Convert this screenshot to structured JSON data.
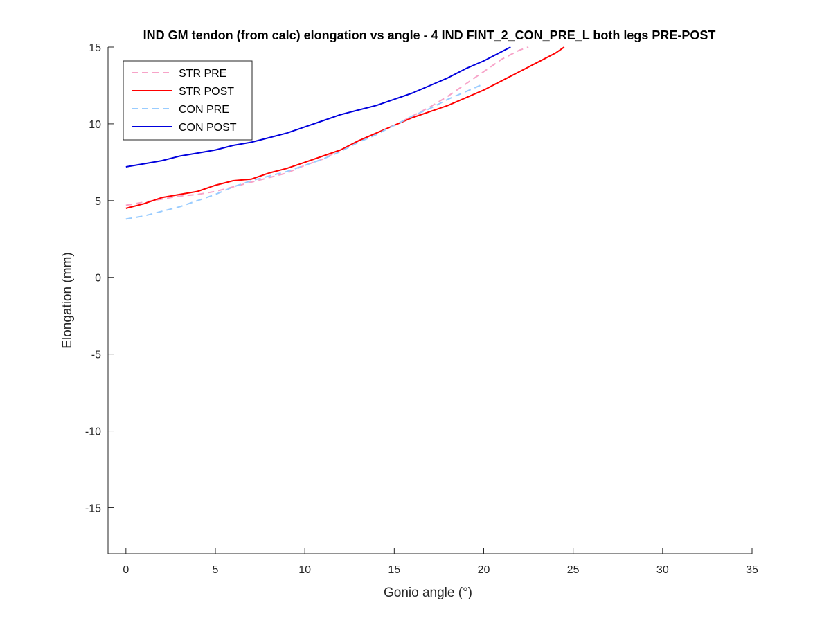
{
  "chart_data": {
    "type": "line",
    "title": "IND GM tendon (from calc) elongation vs angle - 4 IND FINT_2_CON_PRE_L both legs PRE-POST",
    "xlabel": "Gonio angle (°)",
    "ylabel": "Elongation (mm)",
    "xlim": [
      -1,
      35
    ],
    "ylim": [
      -18,
      15
    ],
    "xticks": [
      0,
      5,
      10,
      15,
      20,
      25,
      30,
      35
    ],
    "yticks": [
      -15,
      -10,
      -5,
      0,
      5,
      10,
      15
    ],
    "grid": false,
    "legend_position": "top-left",
    "series": [
      {
        "name": "STR PRE",
        "color": "#f7a3c8",
        "dash": "dashed",
        "x": [
          0,
          1,
          2,
          3,
          4,
          5,
          6,
          7,
          8,
          9,
          10,
          11,
          12,
          13,
          14,
          15,
          16,
          17,
          18,
          19,
          20,
          21,
          22,
          22.5
        ],
        "y": [
          4.7,
          4.9,
          5.1,
          5.3,
          5.4,
          5.6,
          5.9,
          6.2,
          6.5,
          6.8,
          7.3,
          7.7,
          8.3,
          8.9,
          9.4,
          9.9,
          10.5,
          11.1,
          11.8,
          12.6,
          13.4,
          14.2,
          14.8,
          15.0
        ]
      },
      {
        "name": "STR POST",
        "color": "#ff0000",
        "dash": "solid",
        "x": [
          0,
          1,
          2,
          3,
          4,
          5,
          6,
          7,
          8,
          9,
          10,
          11,
          12,
          13,
          14,
          15,
          16,
          17,
          18,
          19,
          20,
          21,
          22,
          23,
          24,
          24.5
        ],
        "y": [
          4.5,
          4.8,
          5.2,
          5.4,
          5.6,
          6.0,
          6.3,
          6.4,
          6.8,
          7.1,
          7.5,
          7.9,
          8.3,
          8.9,
          9.4,
          9.9,
          10.4,
          10.8,
          11.2,
          11.7,
          12.2,
          12.8,
          13.4,
          14.0,
          14.6,
          15.0
        ]
      },
      {
        "name": "CON PRE",
        "color": "#99ccff",
        "dash": "dashed",
        "x": [
          0,
          1,
          2,
          3,
          4,
          5,
          6,
          7,
          8,
          9,
          10,
          11,
          12,
          13,
          14,
          15,
          16,
          17,
          18,
          19,
          20
        ],
        "y": [
          3.8,
          4.0,
          4.3,
          4.6,
          5.0,
          5.4,
          5.9,
          6.3,
          6.6,
          6.9,
          7.3,
          7.7,
          8.2,
          8.8,
          9.3,
          9.9,
          10.5,
          11.0,
          11.6,
          12.1,
          12.6
        ]
      },
      {
        "name": "CON POST",
        "color": "#0000dd",
        "dash": "solid",
        "x": [
          0,
          1,
          2,
          3,
          4,
          5,
          6,
          7,
          8,
          9,
          10,
          11,
          12,
          13,
          14,
          15,
          16,
          17,
          18,
          19,
          20,
          21,
          21.5
        ],
        "y": [
          7.2,
          7.4,
          7.6,
          7.9,
          8.1,
          8.3,
          8.6,
          8.8,
          9.1,
          9.4,
          9.8,
          10.2,
          10.6,
          10.9,
          11.2,
          11.6,
          12.0,
          12.5,
          13.0,
          13.6,
          14.1,
          14.7,
          15.0
        ]
      }
    ]
  }
}
